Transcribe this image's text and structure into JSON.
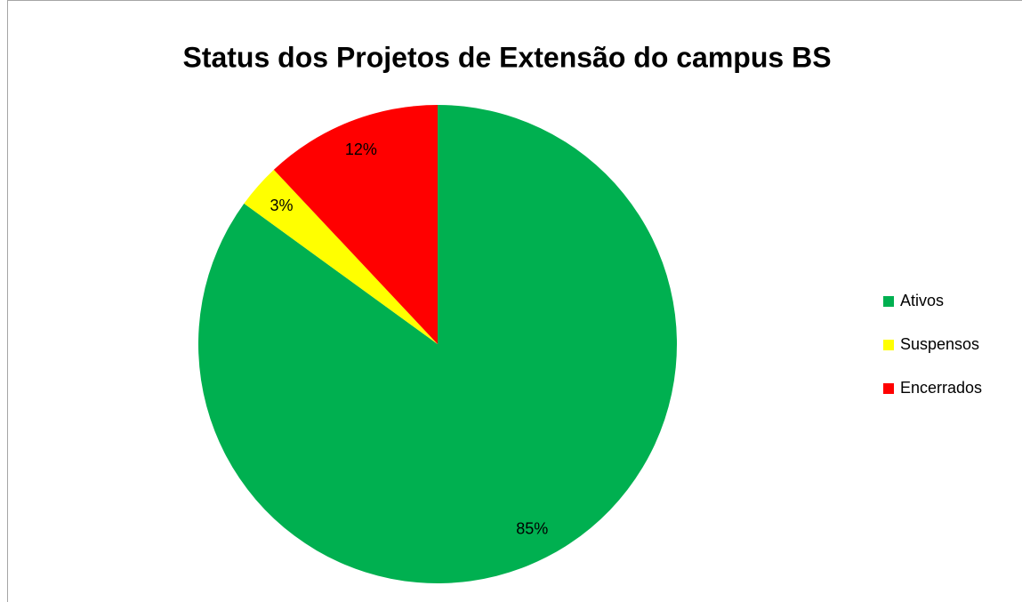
{
  "chart_data": {
    "type": "pie",
    "title": "Status dos Projetos de Extensão do campus BS",
    "categories": [
      "Ativos",
      "Suspensos",
      "Encerrados"
    ],
    "values": [
      85,
      3,
      12
    ],
    "value_labels": [
      "85%",
      "3%",
      "12%"
    ],
    "colors": [
      "#00b050",
      "#ffff00",
      "#ff0000"
    ],
    "legend": "right"
  }
}
